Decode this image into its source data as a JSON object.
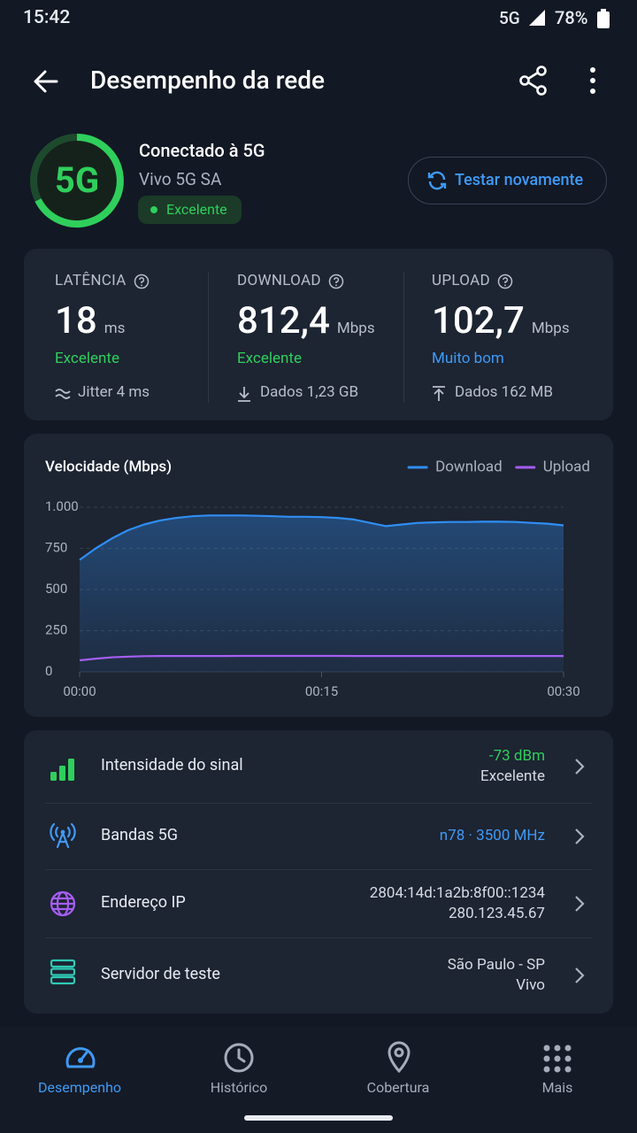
{
  "status_bar": {
    "time": "15:42",
    "network": "5G",
    "battery": "78%"
  },
  "header": {
    "title": "Desempenho da rede"
  },
  "connection": {
    "badge": "5G",
    "title": "Conectado à 5G",
    "operator": "Vivo 5G SA",
    "quality": "Excelente",
    "button": "Testar novamente"
  },
  "metrics": [
    {
      "label": "LATÊNCIA",
      "value": "18",
      "unit": "ms",
      "rating": "Excelente",
      "detail": "Jitter 4 ms"
    },
    {
      "label": "DOWNLOAD",
      "value": "812,4",
      "unit": "Mbps",
      "rating": "Excelente",
      "detail": "Dados 1,23 GB"
    },
    {
      "label": "UPLOAD",
      "value": "102,7",
      "unit": "Mbps",
      "rating": "Muito bom",
      "detail": "Dados 162 MB"
    }
  ],
  "chart_data": {
    "type": "line",
    "title": "Velocidade (Mbps)",
    "x": [
      0,
      1,
      2,
      3,
      4,
      5,
      6,
      7,
      8,
      9,
      10,
      11,
      12,
      13,
      14,
      15,
      16,
      17,
      18,
      19,
      20,
      21,
      22,
      23,
      24,
      25,
      26,
      27,
      28,
      29,
      30
    ],
    "series": [
      {
        "name": "Download",
        "color": "#2f8ef4",
        "values": [
          680,
          750,
          810,
          860,
          895,
          920,
          935,
          945,
          950,
          950,
          950,
          948,
          945,
          942,
          942,
          940,
          935,
          925,
          905,
          885,
          895,
          905,
          908,
          910,
          910,
          912,
          912,
          910,
          905,
          900,
          890
        ]
      },
      {
        "name": "Upload",
        "color": "#a55ef2",
        "values": [
          70,
          80,
          88,
          92,
          95,
          96,
          96,
          96,
          96,
          96,
          97,
          97,
          97,
          97,
          97,
          97,
          97,
          96,
          96,
          96,
          96,
          96,
          96,
          96,
          96,
          96,
          96,
          96,
          96,
          96,
          96
        ]
      }
    ],
    "xlim": [
      0,
      30
    ],
    "xticks": [
      {
        "value": 0,
        "label": "00:00"
      },
      {
        "value": 15,
        "label": "00:15"
      },
      {
        "value": 30,
        "label": "00:30"
      }
    ],
    "ylim": [
      0,
      1000
    ],
    "yticks": [
      0,
      250,
      500,
      750,
      {
        "value": 1000,
        "label": "1.000"
      }
    ],
    "grid": true,
    "legend": "top-right"
  },
  "details": [
    {
      "label": "Intensidade do sinal",
      "value": "-73 dBm",
      "sub": "Excelente"
    },
    {
      "label": "Bandas 5G",
      "value": "n78 · 3500 MHz"
    },
    {
      "label": "Endereço IP",
      "value": "2804:14d:1a2b:8f00::1234",
      "sub": "280.123.45.67"
    },
    {
      "label": "Servidor de teste",
      "value": "São Paulo - SP",
      "sub": "Vivo"
    }
  ],
  "nav": [
    "Desempenho",
    "Histórico",
    "Cobertura",
    "Mais"
  ]
}
